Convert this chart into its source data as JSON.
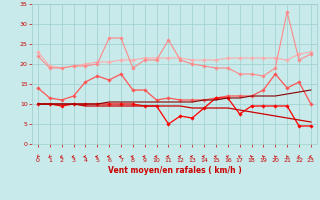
{
  "x": [
    0,
    1,
    2,
    3,
    4,
    5,
    6,
    7,
    8,
    9,
    10,
    11,
    12,
    13,
    14,
    15,
    16,
    17,
    18,
    19,
    20,
    21,
    22,
    23
  ],
  "series": [
    {
      "color": "#ffaaaa",
      "linewidth": 0.8,
      "marker": "D",
      "markersize": 1.8,
      "values": [
        23,
        19.5,
        19,
        19.5,
        20,
        20.5,
        20.5,
        21,
        21,
        21.5,
        21.5,
        21.5,
        21.5,
        21,
        21,
        21,
        21.5,
        21.5,
        21.5,
        21.5,
        21.5,
        21,
        22.5,
        23
      ]
    },
    {
      "color": "#ff8888",
      "linewidth": 0.8,
      "marker": "D",
      "markersize": 1.8,
      "values": [
        22,
        19,
        19,
        19.5,
        19.5,
        20,
        26.5,
        26.5,
        19,
        21,
        21,
        26,
        21,
        20,
        19.5,
        19,
        19,
        17.5,
        17.5,
        17,
        19,
        33,
        21,
        22.5
      ]
    },
    {
      "color": "#ff5555",
      "linewidth": 0.9,
      "marker": "D",
      "markersize": 1.8,
      "values": [
        14,
        11.5,
        11,
        12,
        15.5,
        17,
        16,
        17.5,
        13.5,
        13.5,
        11,
        11.5,
        11,
        11,
        11,
        11.5,
        12,
        12,
        12,
        13.5,
        17.5,
        14,
        15.5,
        10
      ]
    },
    {
      "color": "#ff0000",
      "linewidth": 0.9,
      "marker": "D",
      "markersize": 1.8,
      "values": [
        10,
        10,
        9.5,
        10,
        10,
        10,
        10,
        10,
        10,
        9.5,
        9.5,
        5,
        7,
        6.5,
        9,
        11.5,
        11.5,
        7.5,
        9.5,
        9.5,
        9.5,
        9.5,
        4.5,
        4.5
      ]
    },
    {
      "color": "#cc0000",
      "linewidth": 0.9,
      "marker": null,
      "markersize": 0,
      "values": [
        10,
        10,
        10,
        10,
        9.5,
        9.5,
        9.5,
        9.5,
        9.5,
        9.5,
        9.5,
        9.5,
        9.5,
        9,
        9,
        9,
        9,
        8.5,
        8,
        7.5,
        7,
        6.5,
        6,
        5.5
      ]
    },
    {
      "color": "#880000",
      "linewidth": 0.8,
      "marker": null,
      "markersize": 0,
      "values": [
        10,
        10,
        10,
        10,
        10,
        10,
        10.5,
        10.5,
        10.5,
        10.5,
        10.5,
        10.5,
        10.5,
        10.5,
        11,
        11,
        11.5,
        11.5,
        12,
        12,
        12,
        12.5,
        13,
        13.5
      ]
    }
  ],
  "xlabel": "Vent moyen/en rafales ( km/h )",
  "xlim": [
    -0.5,
    23.5
  ],
  "ylim": [
    0,
    35
  ],
  "yticks": [
    0,
    5,
    10,
    15,
    20,
    25,
    30,
    35
  ],
  "xticks": [
    0,
    1,
    2,
    3,
    4,
    5,
    6,
    7,
    8,
    9,
    10,
    11,
    12,
    13,
    14,
    15,
    16,
    17,
    18,
    19,
    20,
    21,
    22,
    23
  ],
  "bg_color": "#c8eaea",
  "grid_color": "#9ecece",
  "text_color": "#cc0000",
  "arrow_color": "#cc0000",
  "arrow_angles_deg": [
    250,
    240,
    220,
    210,
    200,
    190,
    185,
    185,
    180,
    175,
    175,
    175,
    170,
    165,
    160,
    150,
    145,
    135,
    125,
    120,
    115,
    110,
    220,
    210
  ]
}
